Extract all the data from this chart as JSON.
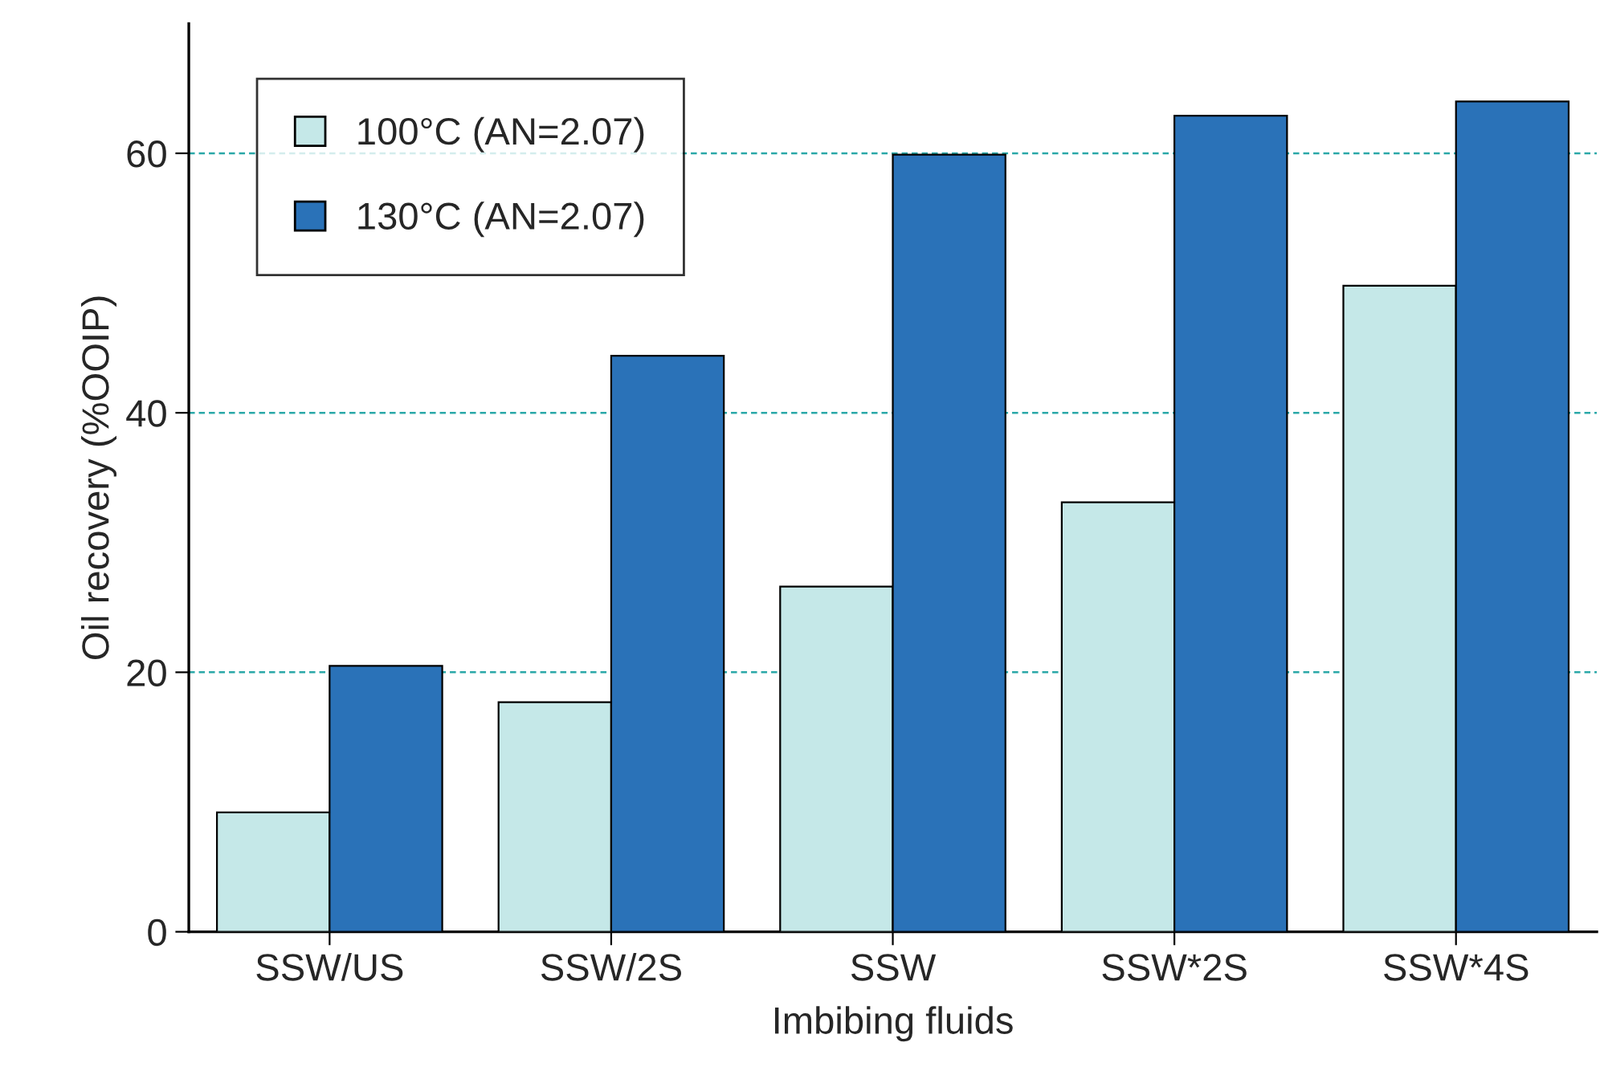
{
  "chart_data": {
    "type": "bar",
    "xlabel": "Imbibing fluids",
    "ylabel": "Oil recovery (%OOIP)",
    "categories": [
      "SSW/US",
      "SSW/2S",
      "SSW",
      "SSW*2S",
      "SSW*4S"
    ],
    "series": [
      {
        "name": "100°C (AN=2.07)",
        "color": "#c5e8e8",
        "values": [
          9.2,
          17.7,
          26.6,
          33.1,
          49.8
        ]
      },
      {
        "name": "130°C (AN=2.07)",
        "color": "#2a72b8",
        "values": [
          20.5,
          44.4,
          59.9,
          62.9,
          64.0
        ]
      }
    ],
    "ylim": [
      0,
      70
    ],
    "yticks": [
      0,
      20,
      40,
      60
    ],
    "grid": "y",
    "legend": "top left"
  }
}
